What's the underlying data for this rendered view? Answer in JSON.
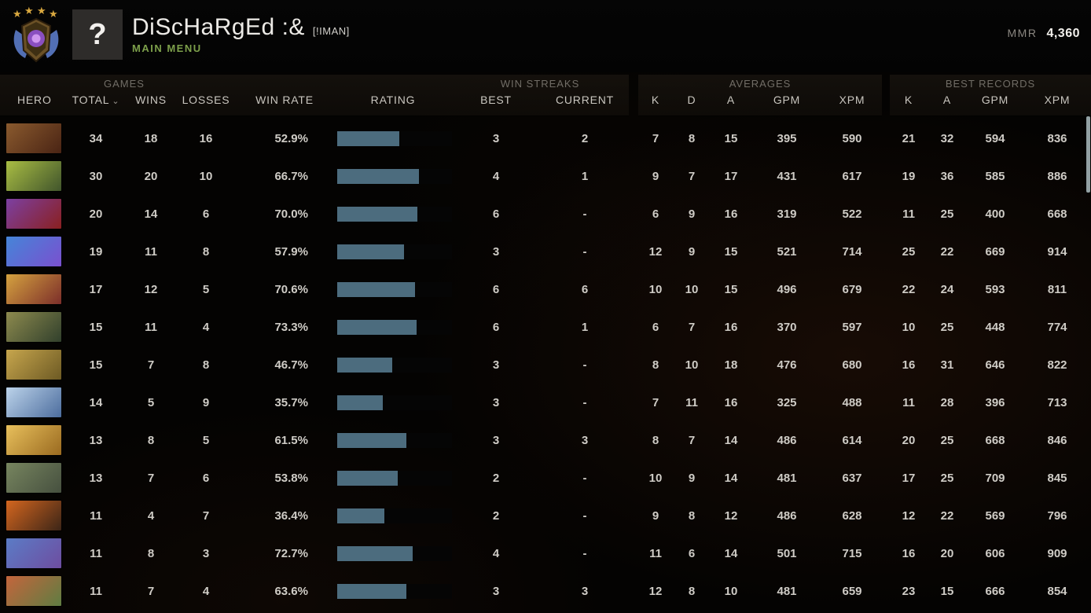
{
  "header": {
    "player_name": "DiScHaRgEd :&",
    "clan_tag": "[!IMAN]",
    "menu_label": "MAIN MENU",
    "avatar_glyph": "?",
    "mmr_label": "MMR",
    "mmr_value": "4,360",
    "rank_medal": "ancient-4-stars"
  },
  "table": {
    "groups": {
      "games": "GAMES",
      "win_streaks": "WIN STREAKS",
      "averages": "AVERAGES",
      "best_records": "BEST RECORDS"
    },
    "columns": {
      "hero": "HERO",
      "total": "TOTAL",
      "wins": "WINS",
      "losses": "LOSSES",
      "win_rate": "WIN RATE",
      "rating": "RATING",
      "best": "BEST",
      "current": "CURRENT",
      "k": "K",
      "d": "D",
      "a": "A",
      "gpm": "GPM",
      "xpm": "XPM",
      "rec_k": "K",
      "rec_a": "A",
      "rec_gpm": "GPM",
      "rec_xpm": "XPM"
    },
    "sort_indicator": "⌄",
    "colors": {
      "bar_fill": "#4c6c7e",
      "win_green": "#a9cfa4",
      "win_red": "#d7a0a0",
      "win_neutral": "#dad7d2",
      "accent_menu_green": "#7da04b"
    },
    "rows": [
      {
        "hero": "earthshaker",
        "portrait_colors": [
          "#8a5a2e",
          "#4a2414"
        ],
        "total": "34",
        "wins": "18",
        "losses": "16",
        "win_rate": "52.9%",
        "win_class": "neutral",
        "rating_pct": 54,
        "best": "3",
        "current": "2",
        "k": "7",
        "d": "8",
        "a": "15",
        "gpm": "395",
        "xpm": "590",
        "rec_k": "21",
        "rec_a": "32",
        "rec_gpm": "594",
        "rec_xpm": "836"
      },
      {
        "hero": "hoodwink",
        "portrait_colors": [
          "#a9bd43",
          "#41552c"
        ],
        "total": "30",
        "wins": "20",
        "losses": "10",
        "win_rate": "66.7%",
        "win_class": "green",
        "rating_pct": 71,
        "best": "4",
        "current": "1",
        "k": "9",
        "d": "7",
        "a": "17",
        "gpm": "431",
        "xpm": "617",
        "rec_k": "19",
        "rec_a": "36",
        "rec_gpm": "585",
        "rec_xpm": "886"
      },
      {
        "hero": "lion",
        "portrait_colors": [
          "#7c40a2",
          "#8a2020"
        ],
        "total": "20",
        "wins": "14",
        "losses": "6",
        "win_rate": "70.0%",
        "win_class": "green",
        "rating_pct": 70,
        "best": "6",
        "current": "-",
        "k": "6",
        "d": "9",
        "a": "16",
        "gpm": "319",
        "xpm": "522",
        "rec_k": "11",
        "rec_a": "25",
        "rec_gpm": "400",
        "rec_xpm": "668"
      },
      {
        "hero": "puck",
        "portrait_colors": [
          "#4585d8",
          "#7a50cf"
        ],
        "total": "19",
        "wins": "11",
        "losses": "8",
        "win_rate": "57.9%",
        "win_class": "neutral",
        "rating_pct": 58,
        "best": "3",
        "current": "-",
        "k": "12",
        "d": "9",
        "a": "15",
        "gpm": "521",
        "xpm": "714",
        "rec_k": "25",
        "rec_a": "22",
        "rec_gpm": "669",
        "rec_xpm": "914"
      },
      {
        "hero": "legion-commander",
        "portrait_colors": [
          "#d5a23f",
          "#7c2e2a"
        ],
        "total": "17",
        "wins": "12",
        "losses": "5",
        "win_rate": "70.6%",
        "win_class": "green",
        "rating_pct": 68,
        "best": "6",
        "current": "6",
        "k": "10",
        "d": "10",
        "a": "15",
        "gpm": "496",
        "xpm": "679",
        "rec_k": "22",
        "rec_a": "24",
        "rec_gpm": "593",
        "rec_xpm": "811"
      },
      {
        "hero": "weaver",
        "portrait_colors": [
          "#8d8a4e",
          "#31402c"
        ],
        "total": "15",
        "wins": "11",
        "losses": "4",
        "win_rate": "73.3%",
        "win_class": "green",
        "rating_pct": 69,
        "best": "6",
        "current": "1",
        "k": "6",
        "d": "7",
        "a": "16",
        "gpm": "370",
        "xpm": "597",
        "rec_k": "10",
        "rec_a": "25",
        "rec_gpm": "448",
        "rec_xpm": "774"
      },
      {
        "hero": "sand-king",
        "portrait_colors": [
          "#c7a64d",
          "#6d5a24"
        ],
        "total": "15",
        "wins": "7",
        "losses": "8",
        "win_rate": "46.7%",
        "win_class": "neutral",
        "rating_pct": 48,
        "best": "3",
        "current": "-",
        "k": "8",
        "d": "10",
        "a": "18",
        "gpm": "476",
        "xpm": "680",
        "rec_k": "16",
        "rec_a": "31",
        "rec_gpm": "646",
        "rec_xpm": "822"
      },
      {
        "hero": "crystal-maiden",
        "portrait_colors": [
          "#bcd3ea",
          "#4c6d9e"
        ],
        "total": "14",
        "wins": "5",
        "losses": "9",
        "win_rate": "35.7%",
        "win_class": "red",
        "rating_pct": 40,
        "best": "3",
        "current": "-",
        "k": "7",
        "d": "11",
        "a": "16",
        "gpm": "325",
        "xpm": "488",
        "rec_k": "11",
        "rec_a": "28",
        "rec_gpm": "396",
        "rec_xpm": "713"
      },
      {
        "hero": "dawnbreaker",
        "portrait_colors": [
          "#e8c05c",
          "#9a6a20"
        ],
        "total": "13",
        "wins": "8",
        "losses": "5",
        "win_rate": "61.5%",
        "win_class": "green",
        "rating_pct": 60,
        "best": "3",
        "current": "3",
        "k": "8",
        "d": "7",
        "a": "14",
        "gpm": "486",
        "xpm": "614",
        "rec_k": "20",
        "rec_a": "25",
        "rec_gpm": "668",
        "rec_xpm": "846"
      },
      {
        "hero": "tiny",
        "portrait_colors": [
          "#77855f",
          "#46503f"
        ],
        "total": "13",
        "wins": "7",
        "losses": "6",
        "win_rate": "53.8%",
        "win_class": "neutral",
        "rating_pct": 53,
        "best": "2",
        "current": "-",
        "k": "10",
        "d": "9",
        "a": "14",
        "gpm": "481",
        "xpm": "637",
        "rec_k": "17",
        "rec_a": "25",
        "rec_gpm": "709",
        "rec_xpm": "845"
      },
      {
        "hero": "shadow-shaman",
        "portrait_colors": [
          "#d4661f",
          "#3c2517"
        ],
        "total": "11",
        "wins": "4",
        "losses": "7",
        "win_rate": "36.4%",
        "win_class": "red",
        "rating_pct": 41,
        "best": "2",
        "current": "-",
        "k": "9",
        "d": "8",
        "a": "12",
        "gpm": "486",
        "xpm": "628",
        "rec_k": "12",
        "rec_a": "22",
        "rec_gpm": "569",
        "rec_xpm": "796"
      },
      {
        "hero": "slardar",
        "portrait_colors": [
          "#5b7cc6",
          "#6e4da0"
        ],
        "total": "11",
        "wins": "8",
        "losses": "3",
        "win_rate": "72.7%",
        "win_class": "green",
        "rating_pct": 66,
        "best": "4",
        "current": "-",
        "k": "11",
        "d": "6",
        "a": "14",
        "gpm": "501",
        "xpm": "715",
        "rec_k": "16",
        "rec_a": "20",
        "rec_gpm": "606",
        "rec_xpm": "909"
      },
      {
        "hero": "windranger",
        "portrait_colors": [
          "#c4653c",
          "#5f7d42"
        ],
        "total": "11",
        "wins": "7",
        "losses": "4",
        "win_rate": "63.6%",
        "win_class": "green",
        "rating_pct": 60,
        "best": "3",
        "current": "3",
        "k": "12",
        "d": "8",
        "a": "10",
        "gpm": "481",
        "xpm": "659",
        "rec_k": "23",
        "rec_a": "15",
        "rec_gpm": "666",
        "rec_xpm": "854"
      }
    ]
  }
}
